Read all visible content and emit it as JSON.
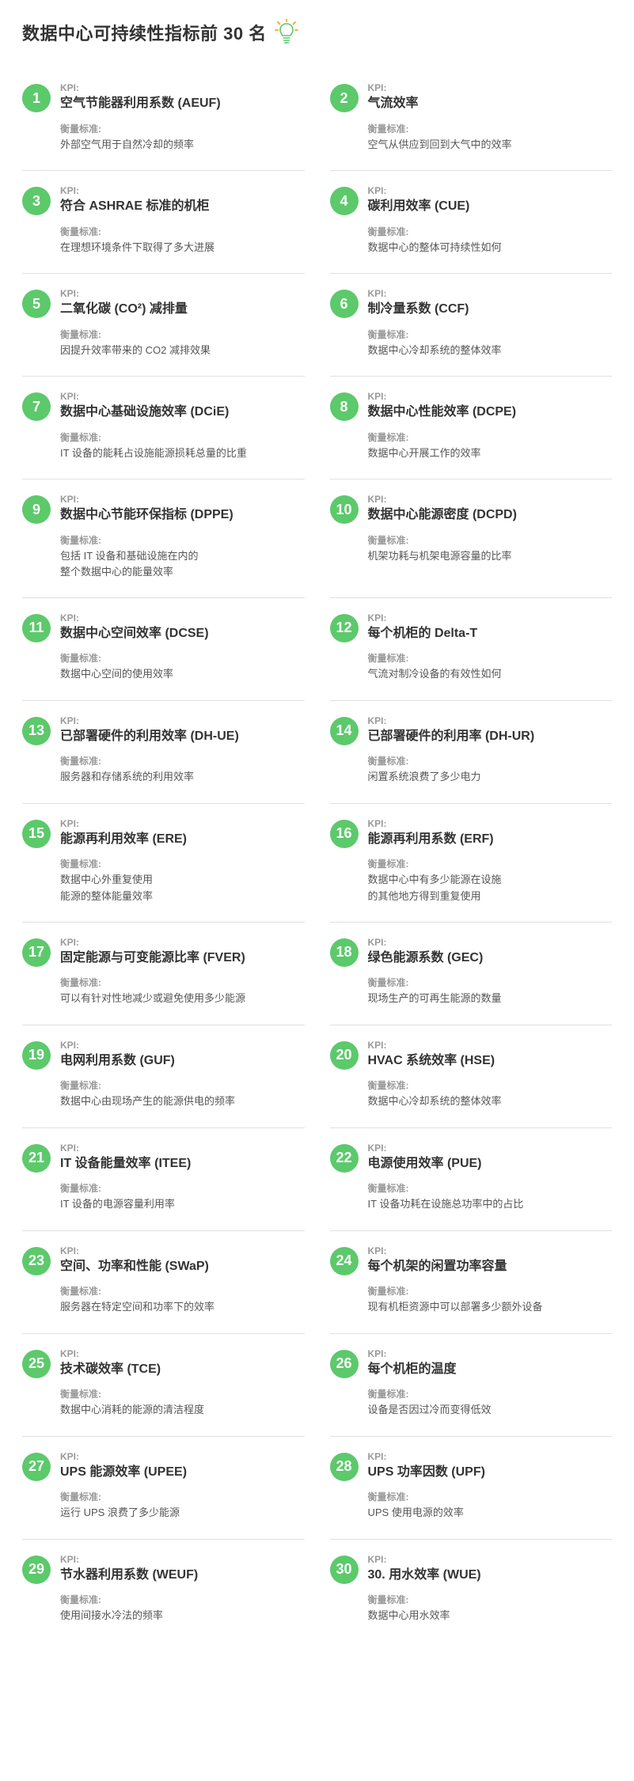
{
  "title": "数据中心可持续性指标前 30 名",
  "labels": {
    "kpi": "KPI:",
    "metric": "衡量标准:"
  },
  "colors": {
    "badge_bg": "#5cc96b",
    "badge_text": "#ffffff",
    "title_text": "#333333",
    "muted_text": "#999999",
    "body_text": "#555555",
    "divider": "#e0e0e0",
    "bulb_outline": "#5cc96b",
    "bulb_rays": "#f5a623"
  },
  "items": [
    {
      "n": "1",
      "name": "空气节能器利用系数 (AEUF)",
      "metric": "外部空气用于自然冷却的频率"
    },
    {
      "n": "2",
      "name": "气流效率",
      "metric": "空气从供应到回到大气中的效率"
    },
    {
      "n": "3",
      "name": " 符合 ASHRAE 标准的机柜",
      "metric": "在理想环境条件下取得了多大进展"
    },
    {
      "n": "4",
      "name": "碳利用效率 (CUE)",
      "metric": "数据中心的整体可持续性如何"
    },
    {
      "n": "5",
      "name": "二氧化碳 (CO²) 减排量",
      "metric": "因提升效率带来的 CO2 减排效果"
    },
    {
      "n": "6",
      "name": "制冷量系数 (CCF)",
      "metric": "数据中心冷却系统的整体效率"
    },
    {
      "n": "7",
      "name": "数据中心基础设施效率 (DCiE)",
      "metric": "IT 设备的能耗占设施能源损耗总量的比重"
    },
    {
      "n": "8",
      "name": "数据中心性能效率 (DCPE)",
      "metric": "数据中心开展工作的效率"
    },
    {
      "n": "9",
      "name": "数据中心节能环保指标 (DPPE)",
      "metric": "包括 IT 设备和基础设施在内的\n整个数据中心的能量效率"
    },
    {
      "n": "10",
      "name": "数据中心能源密度 (DCPD)",
      "metric": "机架功耗与机架电源容量的比率"
    },
    {
      "n": "11",
      "name": "数据中心空间效率 (DCSE)",
      "metric": "数据中心空间的使用效率"
    },
    {
      "n": "12",
      "name": "每个机柜的 Delta-T",
      "metric": "气流对制冷设备的有效性如何"
    },
    {
      "n": "13",
      "name": "已部署硬件的利用效率 (DH-UE)",
      "metric": "服务器和存储系统的利用效率"
    },
    {
      "n": "14",
      "name": "已部署硬件的利用率 (DH-UR)",
      "metric": "闲置系统浪费了多少电力"
    },
    {
      "n": "15",
      "name": "能源再利用效率 (ERE)",
      "metric": "数据中心外重复使用\n能源的整体能量效率"
    },
    {
      "n": "16",
      "name": "能源再利用系数 (ERF)",
      "metric": "数据中心中有多少能源在设施\n的其他地方得到重复使用"
    },
    {
      "n": "17",
      "name": "固定能源与可变能源比率 (FVER)",
      "metric": "可以有针对性地减少或避免使用多少能源"
    },
    {
      "n": "18",
      "name": " 绿色能源系数 (GEC)",
      "metric": "现场生产的可再生能源的数量"
    },
    {
      "n": "19",
      "name": "电网利用系数 (GUF)",
      "metric": "数据中心由现场产生的能源供电的频率"
    },
    {
      "n": "20",
      "name": "HVAC 系统效率 (HSE)",
      "metric": "数据中心冷却系统的整体效率"
    },
    {
      "n": "21",
      "name": "IT 设备能量效率 (ITEE)",
      "metric": "IT 设备的电源容量利用率"
    },
    {
      "n": "22",
      "name": "电源使用效率 (PUE)",
      "metric": "IT 设备功耗在设施总功率中的占比"
    },
    {
      "n": "23",
      "name": "空间、功率和性能 (SWaP)",
      "metric": "服务器在特定空间和功率下的效率"
    },
    {
      "n": "24",
      "name": "每个机架的闲置功率容量",
      "metric": "现有机柜资源中可以部署多少额外设备"
    },
    {
      "n": "25",
      "name": "技术碳效率 (TCE)",
      "metric": "数据中心消耗的能源的清洁程度"
    },
    {
      "n": "26",
      "name": "每个机柜的温度",
      "metric": "设备是否因过冷而变得低效"
    },
    {
      "n": "27",
      "name": "UPS 能源效率 (UPEE)",
      "metric": "运行 UPS 浪费了多少能源"
    },
    {
      "n": "28",
      "name": "UPS 功率因数 (UPF)",
      "metric": "UPS 使用电源的效率"
    },
    {
      "n": "29",
      "name": "节水器利用系数 (WEUF)",
      "metric": "使用间接水冷法的频率"
    },
    {
      "n": "30",
      "name": "30. 用水效率 (WUE)",
      "metric": "数据中心用水效率"
    }
  ]
}
